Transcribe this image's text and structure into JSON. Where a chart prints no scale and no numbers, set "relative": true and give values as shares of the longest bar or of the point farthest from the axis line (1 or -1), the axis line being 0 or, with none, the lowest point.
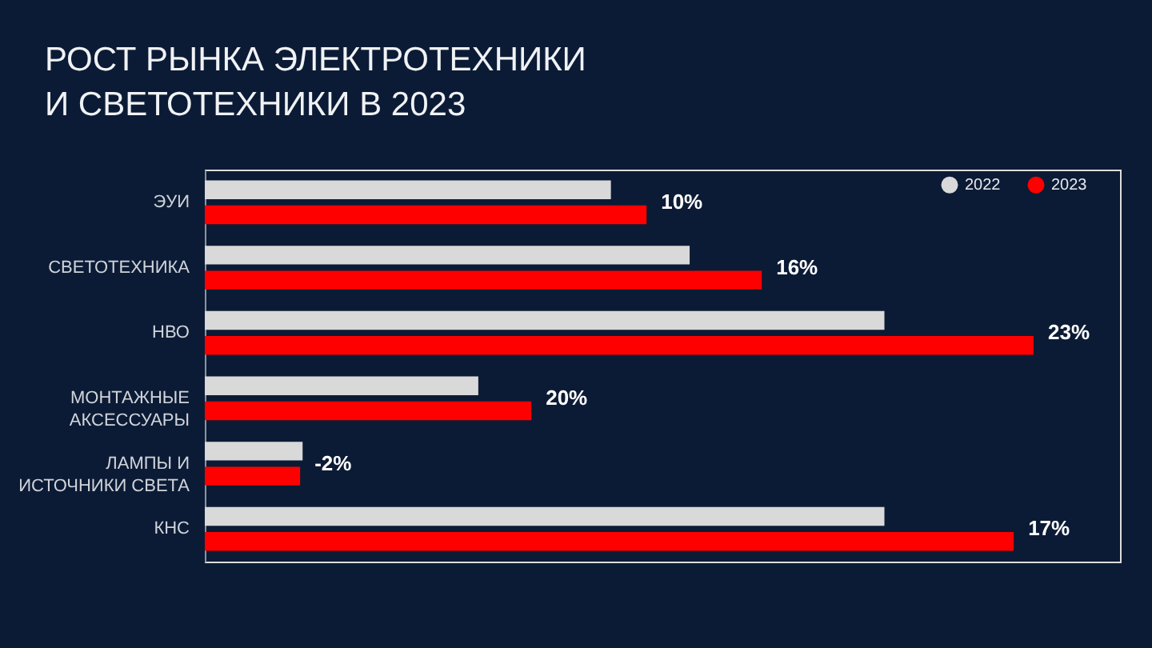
{
  "chart_data": {
    "type": "bar",
    "orientation": "horizontal",
    "relative": true,
    "title": "РОСТ РЫНКА ЭЛЕКТРОТЕХНИКИ\nИ СВЕТОТЕХНИКИ В 2023",
    "categories": [
      "ЭУИ",
      "СВЕТОТЕХНИКА",
      "НВО",
      "МОНТАЖНЫЕ\nАКСЕССУАРЫ",
      "ЛАМПЫ И\nИСТОЧНИКИ СВЕТА",
      "КНС"
    ],
    "series": [
      {
        "name": "2022",
        "color": "#d9d9d9",
        "values": [
          0.49,
          0.585,
          0.82,
          0.33,
          0.118,
          0.82
        ]
      },
      {
        "name": "2023",
        "color": "#ff0000",
        "values": [
          0.533,
          0.672,
          1,
          0.394,
          0.115,
          0.976
        ]
      }
    ],
    "annotations": [
      {
        "text": "10%",
        "x": 0.533,
        "y": "ЭУИ"
      },
      {
        "text": "16%",
        "x": 0.672,
        "y": "СВЕТОТЕХНИКА"
      },
      {
        "text": "23%",
        "x": 1,
        "y": "НВО"
      },
      {
        "text": "20%",
        "x": 0.394,
        "y": "МОНТАЖНЫЕ\nАКСЕССУАРЫ"
      },
      {
        "text": "-2%",
        "x": 0.115,
        "y": "ЛАМПЫ И\nИСТОЧНИКИ СВЕТА"
      },
      {
        "text": "17%",
        "x": 0.976,
        "y": "КНС"
      }
    ],
    "legend": "top right"
  }
}
